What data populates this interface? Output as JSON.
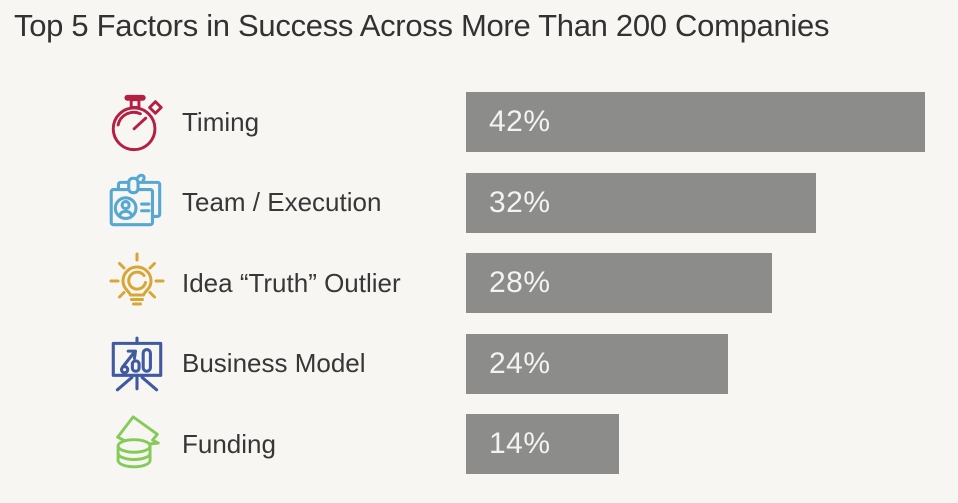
{
  "title": "Top 5 Factors in Success Across More Than 200 Companies",
  "colors": {
    "background": "#f7f6f3",
    "bar": "#8c8c8a",
    "bar_label_text": "#f4f3f0",
    "title_text": "#323232",
    "label_text": "#373737"
  },
  "chart_data": {
    "type": "bar",
    "orientation": "horizontal",
    "title": "Top 5 Factors in Success Across More Than 200 Companies",
    "categories": [
      "Timing",
      "Team / Execution",
      "Idea “Truth” Outlier",
      "Business Model",
      "Funding"
    ],
    "values": [
      42,
      32,
      28,
      24,
      14
    ],
    "value_labels": [
      "42%",
      "32%",
      "28%",
      "24%",
      "14%"
    ],
    "xlim": [
      0,
      42
    ],
    "grid": false,
    "legend": false,
    "value_label_position": "inside-left"
  },
  "rows": [
    {
      "label": "Timing",
      "value": 42,
      "value_label": "42%",
      "icon": "stopwatch-icon",
      "icon_color": "#b51f41"
    },
    {
      "label": "Team / Execution",
      "value": 32,
      "value_label": "32%",
      "icon": "id-badge-icon",
      "icon_color": "#57a7d3"
    },
    {
      "label": "Idea “Truth” Outlier",
      "value": 28,
      "value_label": "28%",
      "icon": "lightbulb-icon",
      "icon_color": "#d8a637"
    },
    {
      "label": "Business Model",
      "value": 24,
      "value_label": "24%",
      "icon": "presentation-chart-icon",
      "icon_color": "#3f5aa0"
    },
    {
      "label": "Funding",
      "value": 14,
      "value_label": "14%",
      "icon": "money-coins-icon",
      "icon_color": "#84cb58"
    }
  ]
}
